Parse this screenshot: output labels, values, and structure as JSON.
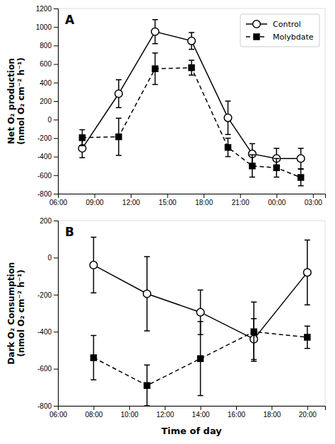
{
  "chart_data": [
    {
      "type": "line",
      "title": "A",
      "ylabel": "Net O₂ production\n(nmol O₂ cm⁻² h⁻¹)",
      "x": [
        8,
        11,
        14,
        17,
        20,
        22,
        24,
        26
      ],
      "xlim": [
        6,
        28
      ],
      "xticks": [
        {
          "value": 6,
          "label": "06:00"
        },
        {
          "value": 9,
          "label": "09:00"
        },
        {
          "value": 12,
          "label": "12:00"
        },
        {
          "value": 15,
          "label": "15:00"
        },
        {
          "value": 18,
          "label": "18:00"
        },
        {
          "value": 21,
          "label": "21:00"
        },
        {
          "value": 24,
          "label": "00:00"
        },
        {
          "value": 27,
          "label": "03:00"
        }
      ],
      "ylim": [
        -800,
        1200
      ],
      "yticks": [
        -800,
        -600,
        -400,
        -200,
        0,
        200,
        400,
        600,
        800,
        1000,
        1200
      ],
      "grid": false,
      "legend": "upper right",
      "series": [
        {
          "name": "Control",
          "color": "black",
          "marker": "open-circle",
          "line_style": "solid",
          "values": [
            -310,
            280,
            950,
            850,
            20,
            -370,
            -420,
            -420
          ],
          "errors": [
            100,
            150,
            130,
            90,
            180,
            110,
            110,
            110
          ]
        },
        {
          "name": "Molybdate",
          "color": "black",
          "marker": "filled-square",
          "line_style": "dashed",
          "values": [
            -195,
            -185,
            550,
            560,
            -300,
            -500,
            -520,
            -625
          ],
          "errors": [
            85,
            200,
            170,
            80,
            100,
            120,
            100,
            90
          ]
        }
      ]
    },
    {
      "type": "line",
      "title": "B",
      "ylabel": "Dark O₂ Consumption\n(nmol O₂ cm⁻² h⁻¹)",
      "xlabel": "Time of day",
      "x": [
        8,
        11,
        14,
        17,
        20
      ],
      "xlim": [
        6,
        21
      ],
      "xticks": [
        {
          "value": 6,
          "label": "06:00"
        },
        {
          "value": 8,
          "label": "08:00"
        },
        {
          "value": 10,
          "label": "10:00"
        },
        {
          "value": 12,
          "label": "12:00"
        },
        {
          "value": 14,
          "label": "14:00"
        },
        {
          "value": 16,
          "label": "16:00"
        },
        {
          "value": 18,
          "label": "18:00"
        },
        {
          "value": 20,
          "label": "20:00"
        }
      ],
      "ylim": [
        -800,
        200
      ],
      "yticks": [
        -800,
        -600,
        -400,
        -200,
        0,
        200
      ],
      "grid": false,
      "series": [
        {
          "name": "Control",
          "color": "black",
          "marker": "open-circle",
          "line_style": "solid",
          "values": [
            -40,
            -195,
            -295,
            -440,
            -80
          ],
          "errors": [
            150,
            200,
            120,
            110,
            175
          ]
        },
        {
          "name": "Molybdate",
          "color": "black",
          "marker": "filled-square",
          "line_style": "dashed",
          "values": [
            -540,
            -690,
            -545,
            -400,
            -430
          ],
          "errors": [
            120,
            110,
            200,
            160,
            60
          ]
        }
      ]
    }
  ]
}
